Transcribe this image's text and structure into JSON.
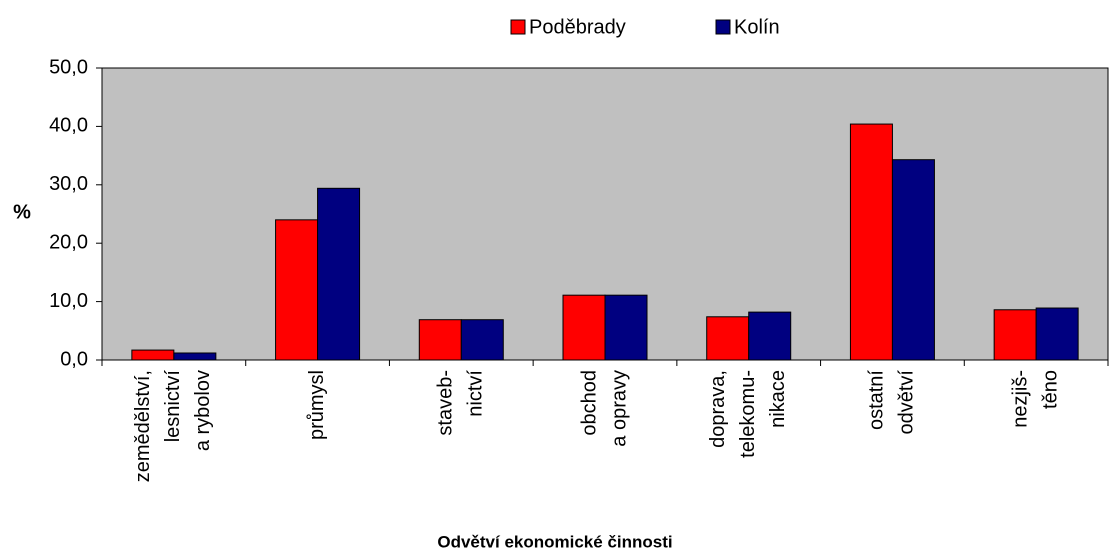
{
  "chart_data": {
    "type": "bar",
    "xlabel": "Odvětví ekonomické činnosti",
    "ylabel": "%",
    "categories": [
      [
        "zemědělství,",
        "lesnictví",
        "a rybolov"
      ],
      [
        "průmysl"
      ],
      [
        "staveb-",
        "nictví"
      ],
      [
        "obchod",
        "a opravy"
      ],
      [
        "doprava,",
        "telekomu-",
        "nikace"
      ],
      [
        "ostatní",
        "odvětví"
      ],
      [
        "nezjiš-",
        "těno"
      ]
    ],
    "series": [
      {
        "name": "Poděbrady",
        "color": "#ff0000",
        "values": [
          1.7,
          24.0,
          6.9,
          11.1,
          7.4,
          40.4,
          8.6
        ]
      },
      {
        "name": "Kolín",
        "color": "#000080",
        "values": [
          1.2,
          29.4,
          6.9,
          11.1,
          8.2,
          34.3,
          8.9
        ]
      }
    ],
    "ylim": [
      0,
      50
    ],
    "yticks": [
      {
        "value": 0,
        "label": "0,0"
      },
      {
        "value": 10,
        "label": "10,0"
      },
      {
        "value": 20,
        "label": "20,0"
      },
      {
        "value": 30,
        "label": "30,0"
      },
      {
        "value": 40,
        "label": "40,0"
      },
      {
        "value": 50,
        "label": "50,0"
      }
    ],
    "plot_background": "#c0c0c0",
    "grid": false,
    "legend": "top"
  }
}
